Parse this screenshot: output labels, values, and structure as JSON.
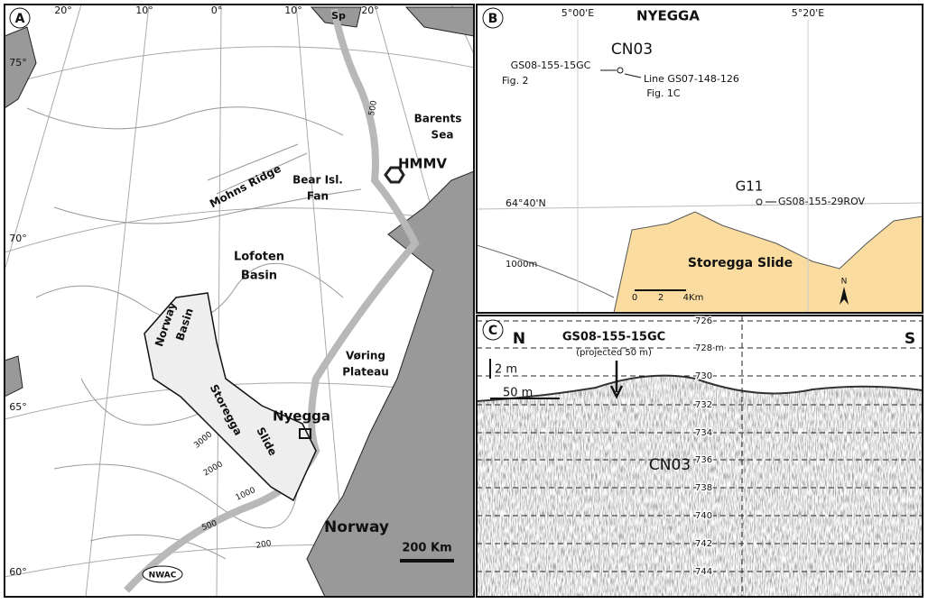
{
  "panel_a": {
    "letter": "A",
    "lon_labels": [
      "20°",
      "10°",
      "0°",
      "10°",
      "20°"
    ],
    "lat_labels": [
      "75°",
      "70°",
      "65°",
      "60°"
    ],
    "places": [
      "Sp",
      "Barents",
      "Sea",
      "HMMV",
      "Mohns Ridge",
      "Bear Isl.",
      "Fan",
      "Lofoten",
      "Basin",
      "Norway",
      "Basin",
      "Vøring",
      "Plateau",
      "Storegga",
      "Slide",
      "Nyegga",
      "Norway"
    ],
    "contours": [
      "500",
      "3000",
      "2000",
      "1000",
      "500",
      "200"
    ],
    "scale": "200 Km",
    "current": "NWAC"
  },
  "panel_b": {
    "letter": "B",
    "lon_labels": [
      "5°00'E",
      "5°20'E"
    ],
    "title": "NYEGGA",
    "lat_label": "64°40'N",
    "labels": [
      "CN03",
      "GS08-155-15GC",
      "Fig. 2",
      "Line GS07-148-126",
      "Fig. 1C",
      "G11",
      "GS08-155-29ROV",
      "1000m",
      "Storegga Slide"
    ],
    "scale": [
      "0",
      "2",
      "4Km"
    ],
    "north": "N"
  },
  "panel_c": {
    "letter": "C",
    "ends": [
      "N",
      "S"
    ],
    "core": "GS08-155-15GC",
    "core_note": "(projected 50 m)",
    "vscale": "2 m",
    "hscale": "50 m",
    "feature": "CN03",
    "depths": [
      "726",
      "728 m",
      "730",
      "732",
      "734",
      "736",
      "738",
      "740",
      "742",
      "744"
    ]
  }
}
